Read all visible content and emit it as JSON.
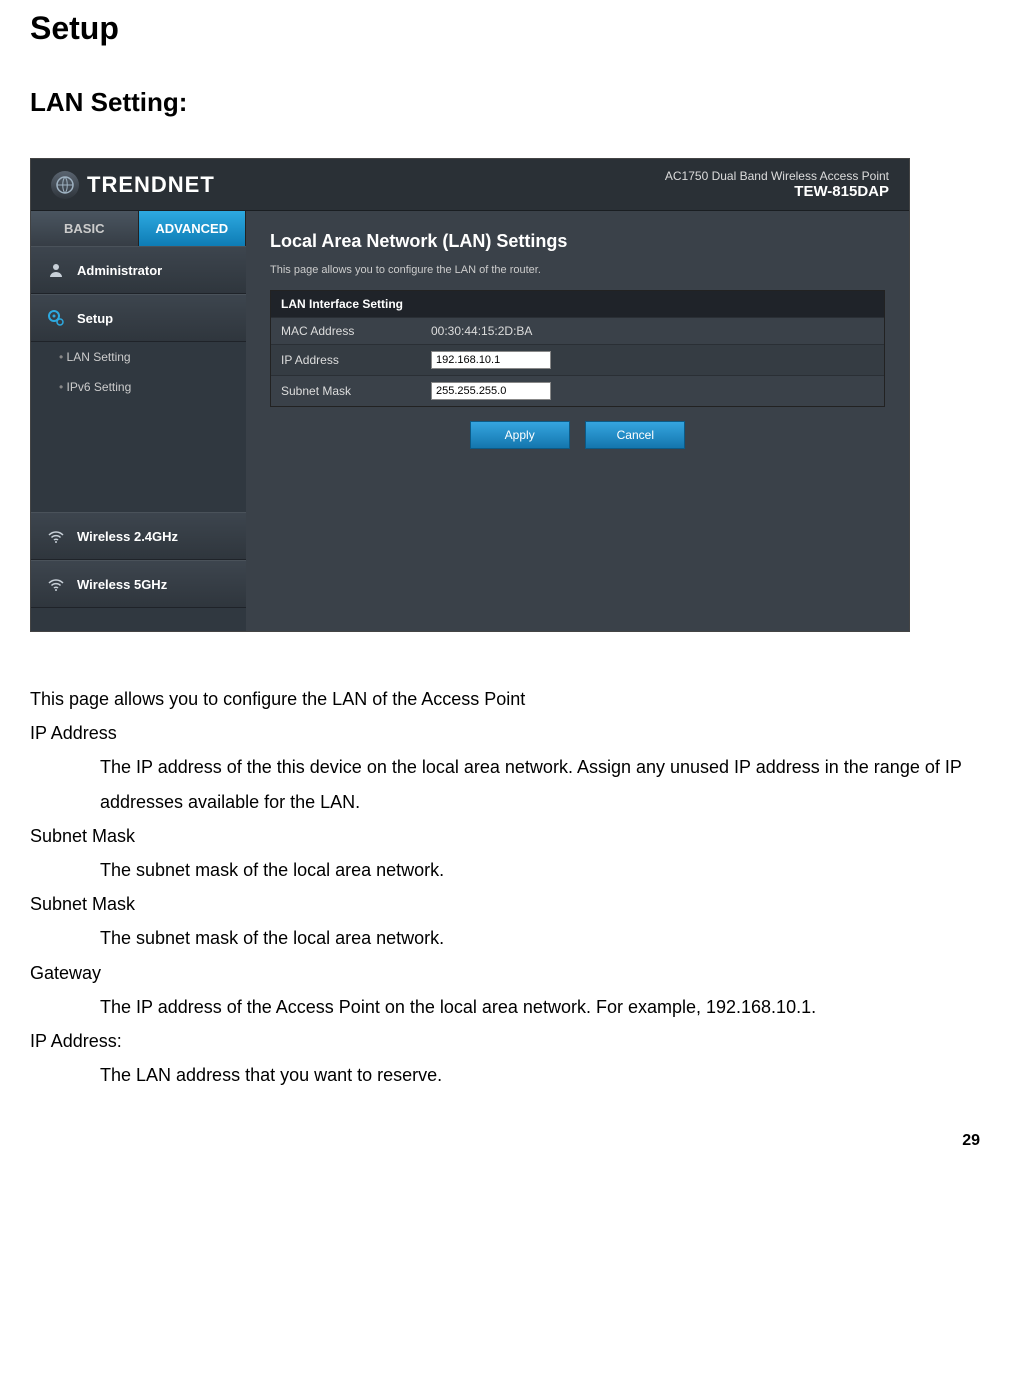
{
  "doc": {
    "title": "Setup",
    "section": "LAN Setting:",
    "page_number": "29",
    "intro": "This page allows you to configure the LAN of the Access Point",
    "defs": [
      {
        "term": "IP Address",
        "def": "The IP address of the this device on the local area network. Assign any unused IP address in the range of IP addresses available for the LAN."
      },
      {
        "term": "Subnet Mask",
        "def": "The subnet mask of the local area network."
      },
      {
        "term": "Subnet Mask",
        "def": "The subnet mask of the local area network."
      },
      {
        "term": "Gateway",
        "def": "The IP address of the Access Point on the local area network. For example, 192.168.10.1."
      },
      {
        "term": "IP Address:",
        "def": "The LAN address that you want to reserve."
      }
    ]
  },
  "ui": {
    "brand": "TRENDNET",
    "device_line1": "AC1750 Dual Band Wireless Access Point",
    "device_line2": "TEW-815DAP",
    "tabs": {
      "basic": "BASIC",
      "advanced": "ADVANCED"
    },
    "nav": {
      "administrator": "Administrator",
      "setup": "Setup",
      "lan_setting": "LAN Setting",
      "ipv6_setting": "IPv6 Setting",
      "wireless_24": "Wireless 2.4GHz",
      "wireless_5": "Wireless 5GHz"
    },
    "content": {
      "title": "Local Area Network (LAN) Settings",
      "desc": "This page allows you to configure the LAN of the router.",
      "panel_head": "LAN Interface Setting",
      "rows": {
        "mac_label": "MAC Address",
        "mac_value": "00:30:44:15:2D:BA",
        "ip_label": "IP Address",
        "ip_value": "192.168.10.1",
        "mask_label": "Subnet Mask",
        "mask_value": "255.255.255.0"
      },
      "buttons": {
        "apply": "Apply",
        "cancel": "Cancel"
      }
    },
    "colors": {
      "bg": "#3a4149",
      "header_bg": "#2a3036",
      "active_tab_top": "#2da9e0",
      "active_tab_bottom": "#0e7cb5",
      "button_top": "#35a5e0",
      "button_bottom": "#1476ad",
      "panel_head": "#1f2329"
    }
  }
}
